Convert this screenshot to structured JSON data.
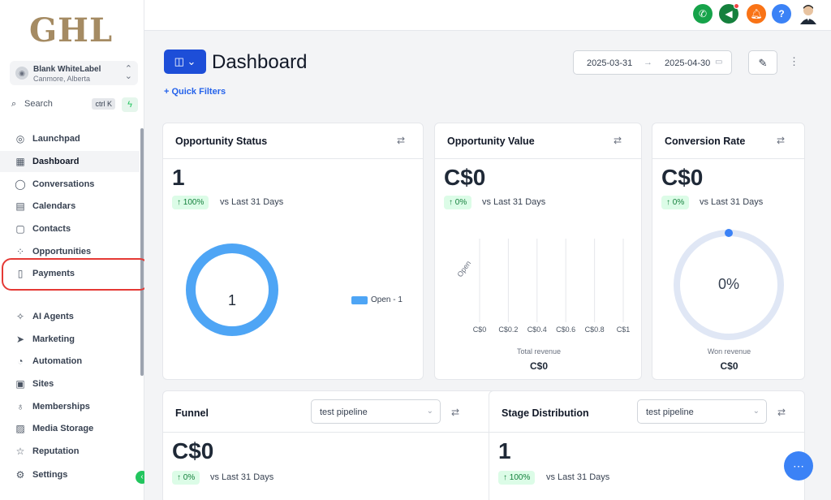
{
  "sidebar": {
    "logo": "GHL",
    "account": {
      "name": "Blank WhiteLabel",
      "location": "Canmore, Alberta"
    },
    "search": {
      "label": "Search",
      "shortcut": "ctrl K"
    },
    "items": [
      {
        "label": "Launchpad",
        "icon": "launchpad-icon",
        "glyph": "◎"
      },
      {
        "label": "Dashboard",
        "icon": "dashboard-icon",
        "glyph": "▦"
      },
      {
        "label": "Conversations",
        "icon": "chat-icon",
        "glyph": "◯"
      },
      {
        "label": "Calendars",
        "icon": "calendar-icon",
        "glyph": "▤"
      },
      {
        "label": "Contacts",
        "icon": "contacts-icon",
        "glyph": "▢"
      },
      {
        "label": "Opportunities",
        "icon": "opportunities-icon",
        "glyph": "⁘"
      },
      {
        "label": "Payments",
        "icon": "payments-icon",
        "glyph": "▯"
      },
      {
        "label": "AI Agents",
        "icon": "ai-agents-icon",
        "glyph": "✧"
      },
      {
        "label": "Marketing",
        "icon": "marketing-icon",
        "glyph": "➤"
      },
      {
        "label": "Automation",
        "icon": "automation-icon",
        "glyph": "◔"
      },
      {
        "label": "Sites",
        "icon": "sites-icon",
        "glyph": "▣"
      },
      {
        "label": "Memberships",
        "icon": "memberships-icon",
        "glyph": "♁"
      },
      {
        "label": "Media Storage",
        "icon": "media-storage-icon",
        "glyph": "▨"
      },
      {
        "label": "Reputation",
        "icon": "reputation-icon",
        "glyph": "☆"
      },
      {
        "label": "Settings",
        "icon": "settings-icon",
        "glyph": "⚙"
      }
    ]
  },
  "header": {
    "title": "Dashboard",
    "quick_filters": "+ Quick Filters",
    "date_from": "2025-03-31",
    "date_to": "2025-04-30"
  },
  "colors": {
    "accent": "#1d4ed8",
    "donut": "#4ea5f5",
    "gauge_track": "#e0e7f5",
    "gauge_dot": "#3b82f6",
    "badge_bg": "#dcfce7",
    "badge_text": "#15803d",
    "highlight": "#e53935"
  },
  "cards": {
    "opportunity_status": {
      "title": "Opportunity Status",
      "value": "1",
      "change": "↑ 100%",
      "compare": "vs Last 31 Days",
      "donut_label": "1",
      "legend": "Open - 1"
    },
    "opportunity_value": {
      "title": "Opportunity Value",
      "value": "C$0",
      "change": "↑ 0%",
      "compare": "vs Last 31 Days",
      "category": "Open",
      "ticks": [
        "C$0",
        "C$0.2",
        "C$0.4",
        "C$0.6",
        "C$0.8",
        "C$1"
      ],
      "footer_label": "Total revenue",
      "footer_value": "C$0"
    },
    "conversion_rate": {
      "title": "Conversion Rate",
      "value": "C$0",
      "change": "↑ 0%",
      "compare": "vs Last 31 Days",
      "gauge_value": "0%",
      "footer_label": "Won revenue",
      "footer_value": "C$0"
    },
    "funnel": {
      "title": "Funnel",
      "pipeline": "test pipeline",
      "value": "C$0",
      "change": "↑ 0%",
      "compare": "vs Last 31 Days"
    },
    "stage_distribution": {
      "title": "Stage Distribution",
      "pipeline": "test pipeline",
      "value": "1",
      "change": "↑ 100%",
      "compare": "vs Last 31 Days"
    }
  }
}
